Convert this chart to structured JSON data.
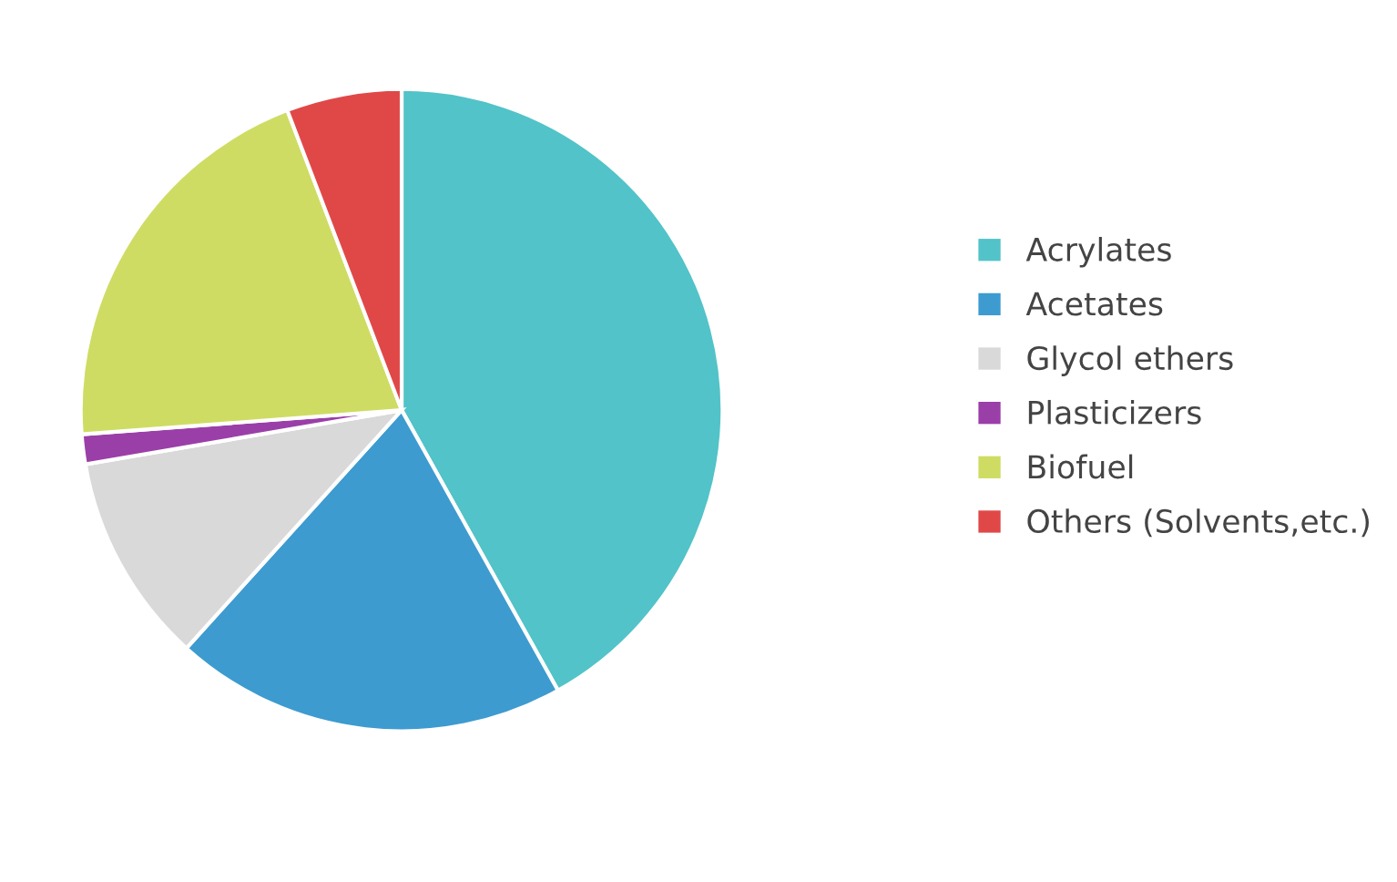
{
  "chart_data": {
    "type": "pie",
    "categories": [
      "Acrylates",
      "Acetates",
      "Glycol ethers",
      "Plasticizers",
      "Biofuel",
      "Others (Solvents,etc.)"
    ],
    "values": [
      41.9,
      19.8,
      10.6,
      1.5,
      20.4,
      5.8
    ],
    "colors": [
      "#52c3c8",
      "#3d9bd0",
      "#d9d9d9",
      "#9b3fa8",
      "#cfdc63",
      "#e04848"
    ],
    "legend": "right"
  }
}
